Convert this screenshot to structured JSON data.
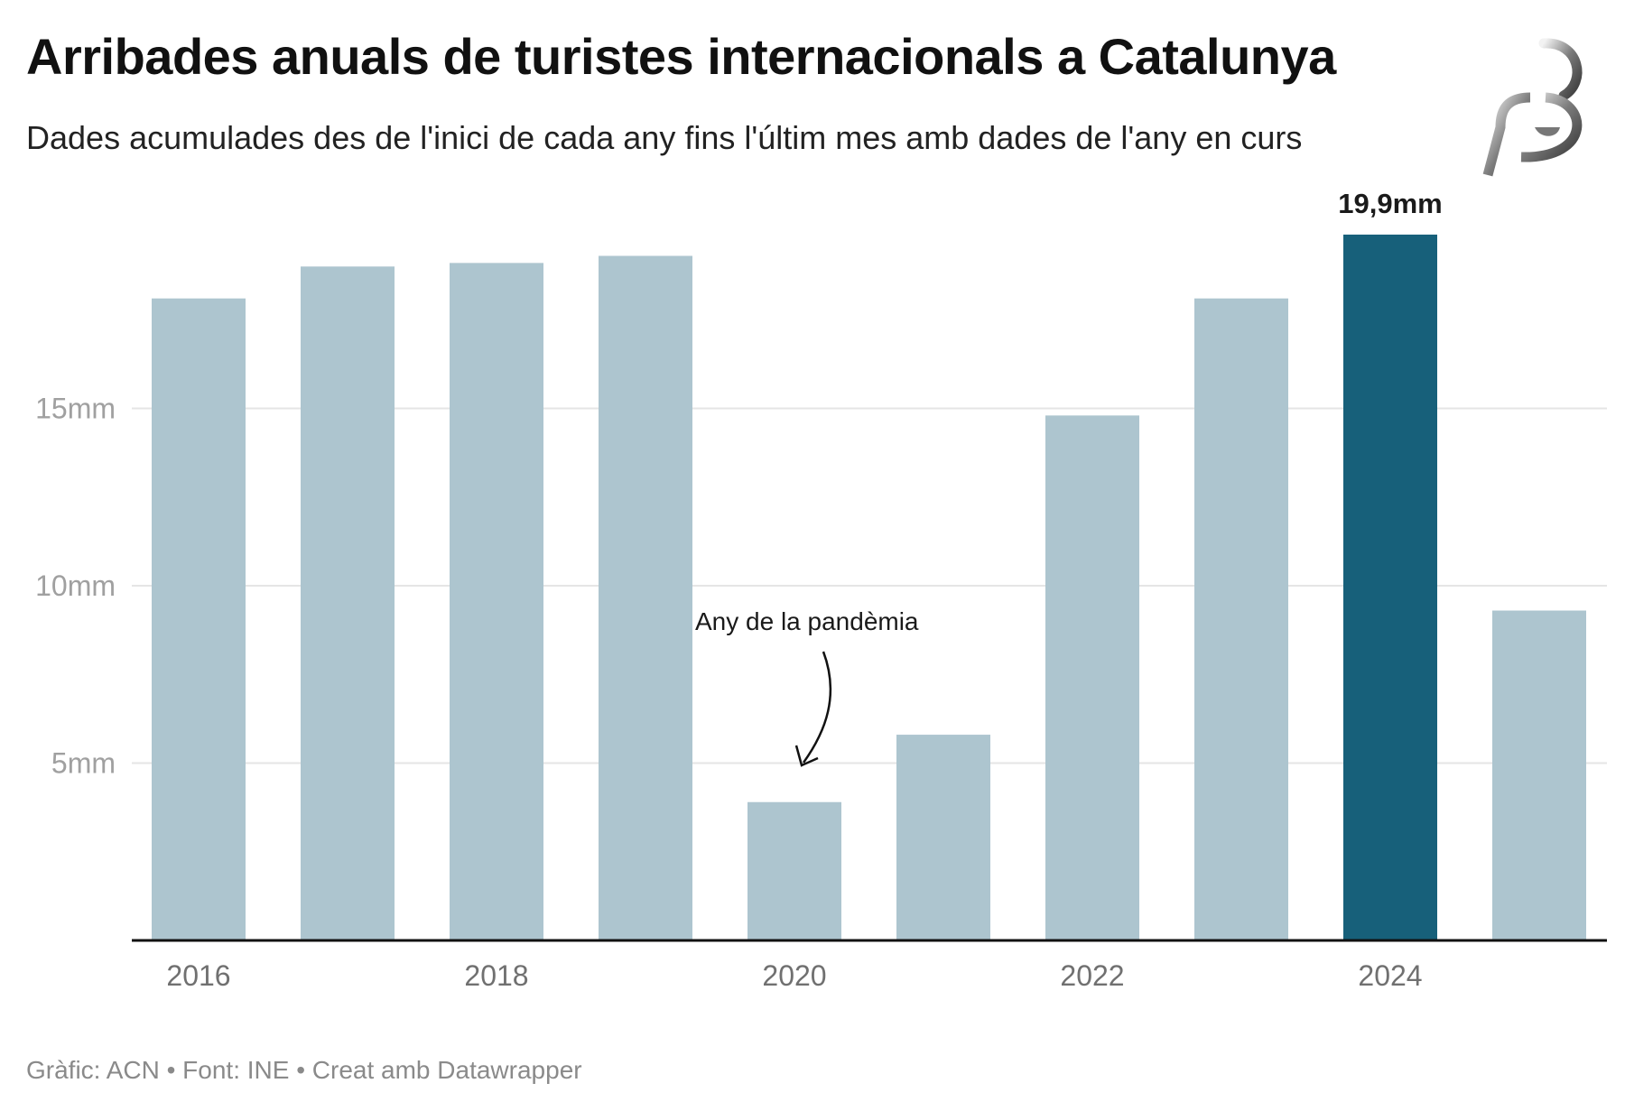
{
  "header": {
    "title": "Arribades anuals de turistes internacionals a Catalunya",
    "subtitle": "Dades acumulades des de l'inici de cada any fins l'últim mes amb dades de l'any en curs"
  },
  "logo": {
    "icon": "b3-logo-icon"
  },
  "footer": {
    "text": "Gràfic: ACN • Font: INE • Creat amb Datawrapper"
  },
  "chart_data": {
    "type": "bar",
    "title": "Arribades anuals de turistes internacionals a Catalunya",
    "subtitle": "Dades acumulades des de l'inici de cada any fins l'últim mes amb dades de l'any en curs",
    "xlabel": "",
    "ylabel": "",
    "unit": "milions (mm)",
    "categories": [
      "2016",
      "2017",
      "2018",
      "2019",
      "2020",
      "2021",
      "2022",
      "2023",
      "2024",
      "2025"
    ],
    "values": [
      18.1,
      19.0,
      19.1,
      19.3,
      3.9,
      5.8,
      14.8,
      18.1,
      19.9,
      9.3
    ],
    "highlight_index": 8,
    "highlight_label": "19,9mm",
    "colors": {
      "default": "#adc5cf",
      "highlight": "#17607a",
      "gridline": "#e5e5e5",
      "baseline": "#111111"
    },
    "ylim": [
      0,
      20
    ],
    "yticks": [
      {
        "value": 5,
        "label": "5mm"
      },
      {
        "value": 10,
        "label": "10mm"
      },
      {
        "value": 15,
        "label": "15mm"
      }
    ],
    "xtick_labels": [
      {
        "index": 0,
        "label": "2016"
      },
      {
        "index": 2,
        "label": "2018"
      },
      {
        "index": 4,
        "label": "2020"
      },
      {
        "index": 6,
        "label": "2022"
      },
      {
        "index": 8,
        "label": "2024"
      }
    ],
    "grid": true,
    "legend": "none",
    "annotations": [
      {
        "text": "Any de la pandèmia",
        "target_index": 4
      }
    ]
  }
}
